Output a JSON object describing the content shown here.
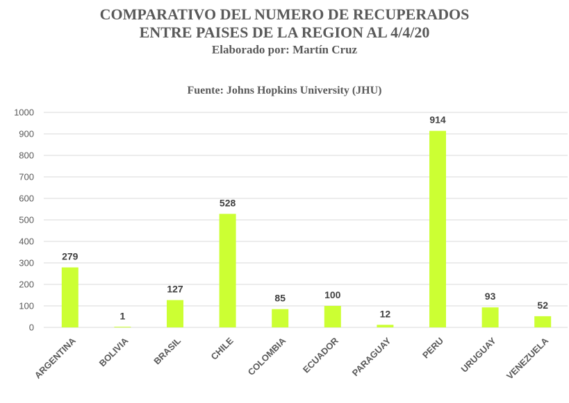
{
  "header": {
    "title_line1": "COMPARATIVO DEL NUMERO DE RECUPERADOS",
    "title_line2": "ENTRE PAISES DE LA REGION AL 4/4/20",
    "author": "Elaborado por: Martín Cruz"
  },
  "chart_data": {
    "type": "bar",
    "title": "COMPARATIVO DEL NUMERO DE RECUPERADOS ENTRE PAISES DE LA REGION AL 4/4/20",
    "subtitle": "Fuente: Johns Hopkins University (JHU)",
    "categories": [
      "ARGENTINA",
      "BOLIVIA",
      "BRASIL",
      "CHILE",
      "COLOMBIA",
      "ECUADOR",
      "PARAGUAY",
      "PERU",
      "URUGUAY",
      "VENEZUELA"
    ],
    "values": [
      279,
      1,
      127,
      528,
      85,
      100,
      12,
      914,
      93,
      52
    ],
    "data_labels": [
      "279",
      "1",
      "127",
      "528",
      "85",
      "100",
      "12",
      "914",
      "93",
      "52"
    ],
    "ylim": [
      0,
      1000
    ],
    "yticks": [
      0,
      100,
      200,
      300,
      400,
      500,
      600,
      700,
      800,
      900,
      1000
    ],
    "ytick_labels": [
      "0",
      "100",
      "200",
      "300",
      "400",
      "500",
      "600",
      "700",
      "800",
      "900",
      "1000"
    ],
    "xlabel": "",
    "ylabel": "",
    "grid": true,
    "bar_color": "#ccff33",
    "grid_color": "#d9d9d9"
  }
}
